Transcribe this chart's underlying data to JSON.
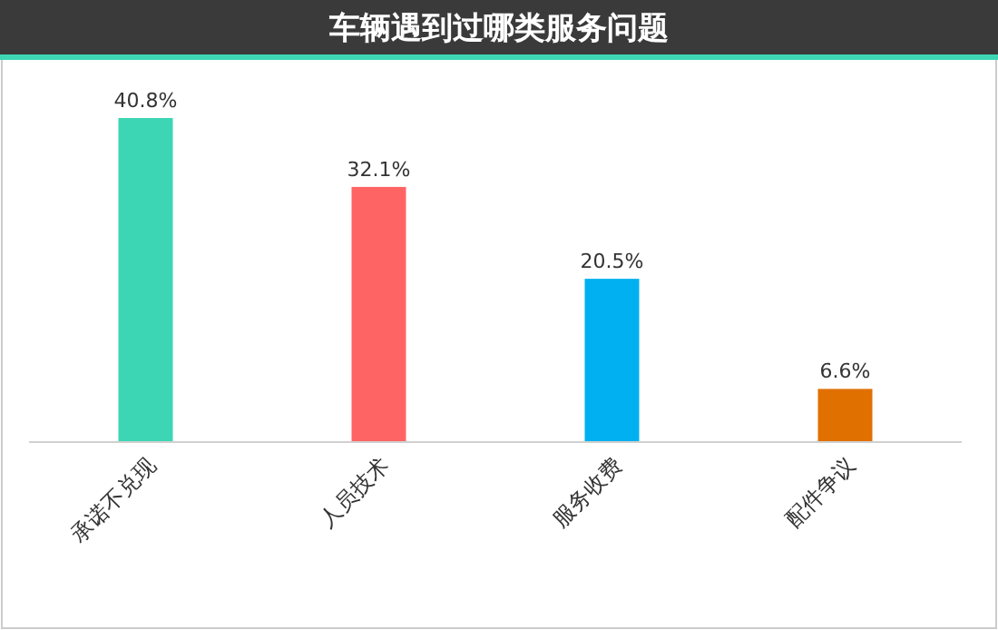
{
  "chart_data": {
    "type": "bar",
    "title": "车辆遇到过哪类服务问题",
    "categories": [
      "承诺不兑现",
      "人员技术",
      "服务收费",
      "配件争议"
    ],
    "values": [
      40.8,
      32.1,
      20.5,
      6.6
    ],
    "colors": [
      "#3dd6b5",
      "#ff6464",
      "#00b0f0",
      "#e07000"
    ],
    "value_labels": [
      "40.8%",
      "32.1%",
      "20.5%",
      "6.6%"
    ]
  }
}
